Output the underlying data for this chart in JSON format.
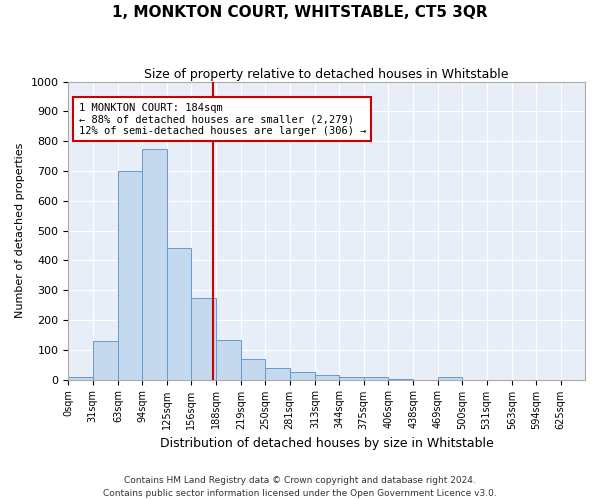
{
  "title": "1, MONKTON COURT, WHITSTABLE, CT5 3QR",
  "subtitle": "Size of property relative to detached houses in Whitstable",
  "xlabel": "Distribution of detached houses by size in Whitstable",
  "ylabel": "Number of detached properties",
  "bar_color": "#c5d9ee",
  "bar_edge_color": "#6699cc",
  "background_color": "#e8eef8",
  "grid_color": "#ffffff",
  "categories": [
    "0sqm",
    "31sqm",
    "63sqm",
    "94sqm",
    "125sqm",
    "156sqm",
    "188sqm",
    "219sqm",
    "250sqm",
    "281sqm",
    "313sqm",
    "344sqm",
    "375sqm",
    "406sqm",
    "438sqm",
    "469sqm",
    "500sqm",
    "531sqm",
    "563sqm",
    "594sqm",
    "625sqm"
  ],
  "values": [
    8,
    128,
    700,
    775,
    440,
    275,
    133,
    68,
    40,
    27,
    15,
    10,
    8,
    2,
    0,
    8,
    0,
    0,
    0,
    0,
    0
  ],
  "property_size": 184,
  "property_label": "1 MONKTON COURT: 184sqm",
  "annotation_line1": "← 88% of detached houses are smaller (2,279)",
  "annotation_line2": "12% of semi-detached houses are larger (306) →",
  "vline_color": "#cc0000",
  "annotation_box_edge": "#cc0000",
  "ylim": [
    0,
    1000
  ],
  "yticks": [
    0,
    100,
    200,
    300,
    400,
    500,
    600,
    700,
    800,
    900,
    1000
  ],
  "footnote1": "Contains HM Land Registry data © Crown copyright and database right 2024.",
  "footnote2": "Contains public sector information licensed under the Open Government Licence v3.0.",
  "left_edges": [
    0,
    31,
    63,
    94,
    125,
    156,
    188,
    219,
    250,
    281,
    313,
    344,
    375,
    406,
    438,
    469,
    500,
    531,
    563,
    594,
    625
  ],
  "fig_width": 6.0,
  "fig_height": 5.0,
  "fig_bg": "#ffffff"
}
